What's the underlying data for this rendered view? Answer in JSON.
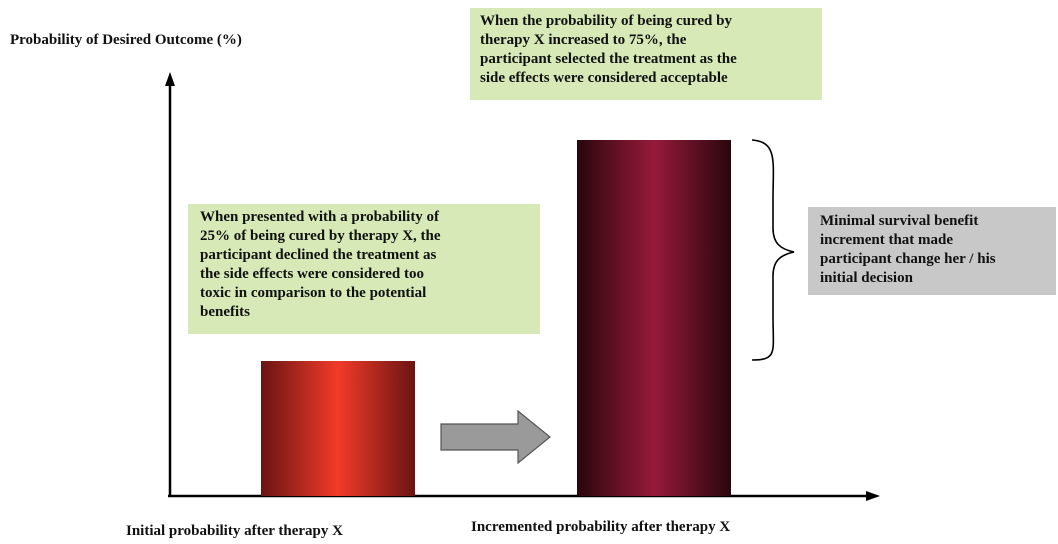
{
  "axes": {
    "y_label": "Probability of Desired Outcome (%)"
  },
  "bars": [
    {
      "label": "Initial probability after therapy X",
      "value": 25
    },
    {
      "label": "Incremented probability after therapy X",
      "value": 75
    }
  ],
  "annotations": {
    "top": [
      "When the probability of being cured by",
      "therapy X increased to 75%, the",
      "participant selected the treatment as the",
      "side effects were considered acceptable"
    ],
    "left": [
      "When presented with a probability  of",
      "25% of being cured by therapy X, the",
      "participant declined the treatment as",
      "the side effects were considered too",
      "toxic in comparison to the potential",
      "benefits"
    ],
    "right": [
      "Minimal survival benefit",
      "increment that made",
      "participant change her / his",
      "initial decision"
    ]
  },
  "colors": {
    "initial_bar": "#e8362a",
    "incremented_bar": "#8e1738",
    "green_note": "#d6e9b6",
    "gray_note": "#c8c8c8",
    "arrow": "#9a9a9a"
  }
}
